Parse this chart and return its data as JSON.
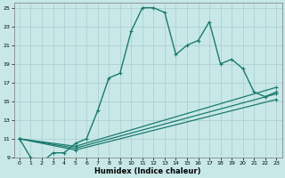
{
  "xlabel": "Humidex (Indice chaleur)",
  "bg_color": "#c8e8e8",
  "grid_color": "#aacccc",
  "line_color": "#1a7a6e",
  "xlim": [
    -0.5,
    23.5
  ],
  "ylim": [
    9,
    25.5
  ],
  "xticks": [
    0,
    1,
    2,
    3,
    4,
    5,
    6,
    7,
    8,
    9,
    10,
    11,
    12,
    13,
    14,
    15,
    16,
    17,
    18,
    19,
    20,
    21,
    22,
    23
  ],
  "yticks": [
    9,
    11,
    13,
    15,
    17,
    19,
    21,
    23,
    25
  ],
  "main_x": [
    0,
    1,
    2,
    3,
    4,
    5,
    6,
    7,
    8,
    9,
    10,
    11,
    12,
    13,
    14,
    15,
    16,
    17,
    18,
    19,
    20,
    21,
    22,
    23
  ],
  "main_y": [
    11,
    9,
    8.5,
    9.5,
    9.5,
    10.5,
    11,
    14,
    17.5,
    18,
    22.5,
    25,
    25,
    24.5,
    20,
    21,
    21.5,
    23.5,
    19,
    19.5,
    18.5,
    16,
    15.5,
    16
  ],
  "line2_x": [
    0,
    5,
    23
  ],
  "line2_y": [
    11,
    10.2,
    16.5
  ],
  "line3_x": [
    0,
    5,
    23
  ],
  "line3_y": [
    11,
    10.0,
    15.8
  ],
  "line4_x": [
    0,
    5,
    23
  ],
  "line4_y": [
    11,
    9.8,
    15.2
  ]
}
